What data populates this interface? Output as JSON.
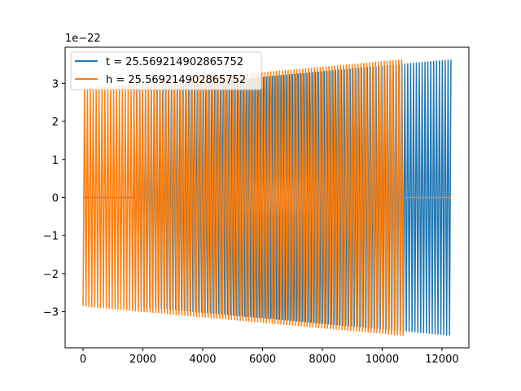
{
  "chart_data": {
    "type": "line",
    "title": "",
    "xlabel": "",
    "ylabel": "",
    "offset_text": "1e−22",
    "xlim": [
      -600,
      12900
    ],
    "ylim": [
      -3.95,
      3.95
    ],
    "xticks": [
      0,
      2000,
      4000,
      6000,
      8000,
      10000,
      12000
    ],
    "xtick_labels": [
      "0",
      "2000",
      "4000",
      "6000",
      "8000",
      "10000",
      "12000"
    ],
    "yticks": [
      -3,
      -2,
      -1,
      0,
      1,
      2,
      3
    ],
    "ytick_labels": [
      "−3",
      "−2",
      "−1",
      "0",
      "1",
      "2",
      "3"
    ],
    "grid": false,
    "legend_position": "top-left",
    "series": [
      {
        "name": "t = 25.569214902865752",
        "color": "#1f77b4",
        "zero_pad_before": [
          0,
          1700
        ],
        "oscillation_range": [
          1700,
          12300
        ],
        "amplitude_start": 2.85,
        "amplitude_end": 3.62,
        "approx_cycles": 110
      },
      {
        "name": "h = 25.569214902865752",
        "color": "#ff7f0e",
        "zero_pad_after": [
          10700,
          12300
        ],
        "oscillation_range": [
          0,
          10700
        ],
        "amplitude_start": 2.85,
        "amplitude_end": 3.62,
        "approx_cycles": 110
      }
    ]
  }
}
